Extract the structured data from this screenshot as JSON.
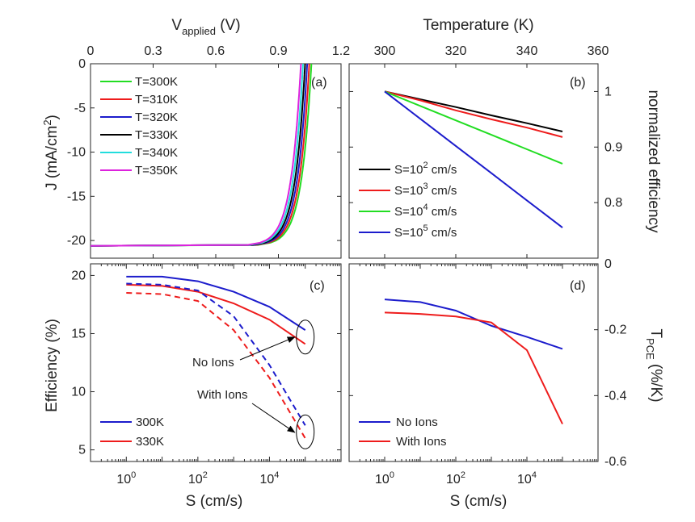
{
  "chart_data": [
    {
      "id": "a",
      "type": "line",
      "panel_label": "(a)",
      "xlabel": "V",
      "xlabel_sub": "applied",
      "xlabel_unit": " (V)",
      "ylabel": "J (mA/cm",
      "ylabel_sup": "2",
      "ylabel_end": ")",
      "xlim": [
        0,
        1.2
      ],
      "ylim": [
        -22,
        0
      ],
      "xticks": [
        0,
        0.3,
        0.6,
        0.9,
        1.2
      ],
      "xtick_labels": [
        "0",
        "0.3",
        "0.6",
        "0.9",
        "1.2"
      ],
      "yticks": [
        0,
        -5,
        -10,
        -15,
        -20
      ],
      "ytick_labels": [
        "0",
        "-5",
        "-10",
        "-15",
        "-20"
      ],
      "jsc": -20.6,
      "series": [
        {
          "name": "T=300K",
          "color": "#22dd22",
          "voc": 1.058
        },
        {
          "name": "T=310K",
          "color": "#ee1c1c",
          "voc": 1.048
        },
        {
          "name": "T=320K",
          "color": "#1c1ccc",
          "voc": 1.038
        },
        {
          "name": "T=330K",
          "color": "#000000",
          "voc": 1.028
        },
        {
          "name": "T=340K",
          "color": "#22dddd",
          "voc": 1.018
        },
        {
          "name": "T=350K",
          "color": "#dd22dd",
          "voc": 1.008
        }
      ]
    },
    {
      "id": "b",
      "type": "line",
      "panel_label": "(b)",
      "xlabel": "Temperature (K)",
      "ylabel": "normalized efficiency",
      "xlim": [
        290,
        360
      ],
      "ylim": [
        0.7,
        1.05
      ],
      "xticks": [
        300,
        320,
        340,
        360
      ],
      "xtick_labels": [
        "300",
        "320",
        "340",
        "360"
      ],
      "yticks": [
        0.8,
        0.9,
        1.0
      ],
      "ytick_labels": [
        "0.8",
        "0.9",
        "1"
      ],
      "x": [
        300,
        310,
        320,
        330,
        340,
        350
      ],
      "series": [
        {
          "name_prefix": "S=10",
          "name_sup": "2",
          "name_suffix": " cm/s",
          "color": "#000000",
          "values": [
            1.0,
            0.986,
            0.972,
            0.957,
            0.943,
            0.928
          ]
        },
        {
          "name_prefix": "S=10",
          "name_sup": "3",
          "name_suffix": " cm/s",
          "color": "#ee1c1c",
          "values": [
            1.0,
            0.984,
            0.966,
            0.95,
            0.935,
            0.918
          ]
        },
        {
          "name_prefix": "S=10",
          "name_sup": "4",
          "name_suffix": " cm/s",
          "color": "#22dd22",
          "values": [
            1.0,
            0.974,
            0.948,
            0.922,
            0.896,
            0.87
          ]
        },
        {
          "name_prefix": "S=10",
          "name_sup": "5",
          "name_suffix": " cm/s",
          "color": "#1c1ccc",
          "values": [
            1.0,
            0.951,
            0.902,
            0.853,
            0.804,
            0.755
          ]
        }
      ]
    },
    {
      "id": "c",
      "type": "line",
      "panel_label": "(c)",
      "xlabel": "S (cm/s)",
      "ylabel": "Efficiency (%)",
      "xscale": "log",
      "xlim_log10": [
        -1,
        6
      ],
      "ylim": [
        4,
        21
      ],
      "xticks_log10": [
        0,
        2,
        4
      ],
      "xtick_base": "10",
      "xtick_exps": [
        "0",
        "2",
        "4"
      ],
      "yticks": [
        5,
        10,
        15,
        20
      ],
      "ytick_labels": [
        "5",
        "10",
        "15",
        "20"
      ],
      "x_log10": [
        0,
        1,
        2,
        3,
        4,
        5
      ],
      "series": [
        {
          "name": "300K",
          "color": "#1c1ccc",
          "style": "solid",
          "values": [
            19.9,
            19.9,
            19.5,
            18.6,
            17.3,
            15.3
          ]
        },
        {
          "name": "330K",
          "color": "#ee1c1c",
          "style": "solid",
          "values": [
            19.2,
            19.1,
            18.6,
            17.6,
            16.2,
            14.1
          ]
        },
        {
          "name": "300K with ions",
          "color": "#1c1ccc",
          "style": "dashed",
          "values": [
            19.3,
            19.2,
            18.7,
            16.5,
            12.3,
            7.1
          ]
        },
        {
          "name": "330K with ions",
          "color": "#ee1c1c",
          "style": "dashed",
          "values": [
            18.5,
            18.4,
            17.8,
            15.3,
            11.2,
            6.0
          ]
        }
      ],
      "annotations": [
        {
          "text": "No Ions"
        },
        {
          "text": "With Ions"
        }
      ]
    },
    {
      "id": "d",
      "type": "line",
      "panel_label": "(d)",
      "xlabel": "S (cm/s)",
      "ylabel": "T",
      "ylabel_sub": "PCE",
      "ylabel_end": " (%/K)",
      "xscale": "log",
      "xlim_log10": [
        -1,
        6
      ],
      "ylim": [
        -0.6,
        0
      ],
      "xticks_log10": [
        0,
        2,
        4
      ],
      "xtick_base": "10",
      "xtick_exps": [
        "0",
        "2",
        "4"
      ],
      "yticks": [
        0,
        -0.2,
        -0.4,
        -0.6
      ],
      "ytick_labels": [
        "0",
        "-0.2",
        "-0.4",
        "-0.6"
      ],
      "x_log10": [
        0,
        1,
        2,
        3,
        4,
        5
      ],
      "series": [
        {
          "name": "No Ions",
          "color": "#1c1ccc",
          "values": [
            -0.108,
            -0.116,
            -0.142,
            -0.188,
            -0.222,
            -0.258
          ]
        },
        {
          "name": "With Ions",
          "color": "#ee1c1c",
          "values": [
            -0.148,
            -0.152,
            -0.16,
            -0.178,
            -0.262,
            -0.486
          ]
        }
      ]
    }
  ]
}
